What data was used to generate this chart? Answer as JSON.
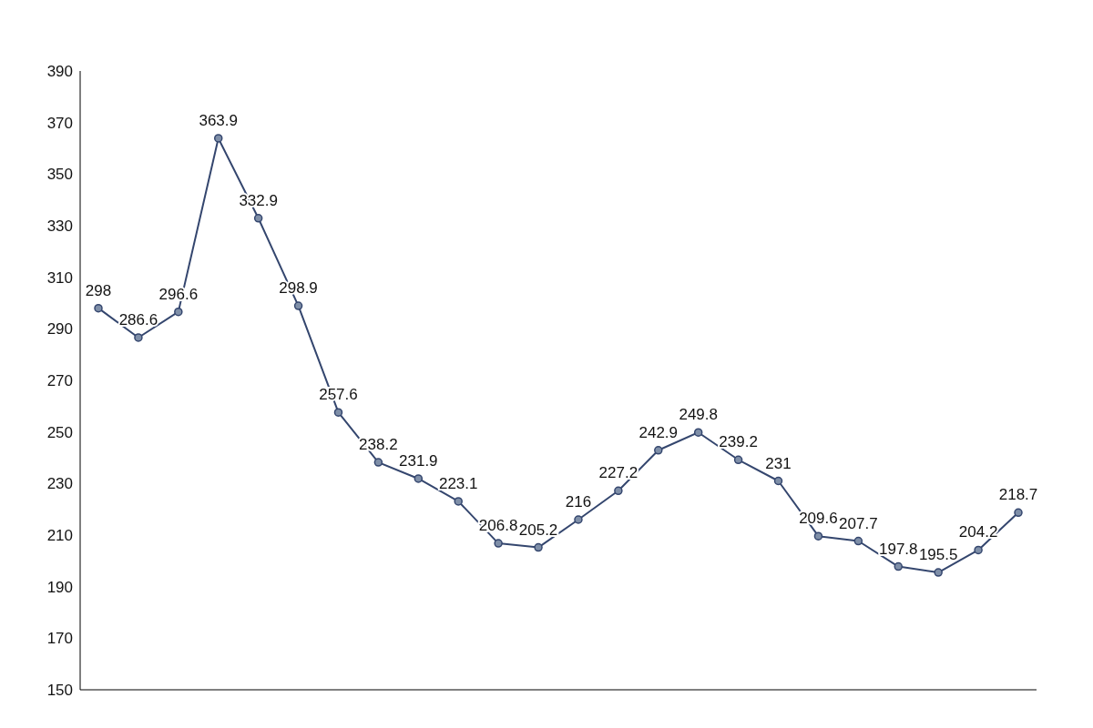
{
  "chart_data": {
    "type": "line",
    "categories": [
      null,
      null,
      null,
      null,
      null,
      null,
      null,
      null,
      null,
      null,
      null,
      null,
      null,
      null,
      null,
      null,
      null,
      null,
      null,
      null,
      null,
      null,
      null,
      null
    ],
    "series": [
      {
        "color": "#34466e",
        "values": [
          298,
          286.6,
          296.6,
          363.9,
          332.9,
          298.9,
          257.6,
          238.2,
          231.9,
          223.1,
          206.8,
          205.2,
          216.0,
          227.2,
          242.9,
          249.8,
          239.2,
          231.0,
          209.6,
          207.7,
          197.8,
          195.5,
          204.2,
          218.7
        ]
      }
    ],
    "ylim": [
      150,
      390
    ],
    "yticks": [
      150,
      170,
      190,
      210,
      230,
      250,
      270,
      290,
      310,
      330,
      350,
      370,
      390
    ],
    "grid": false,
    "legend": false,
    "marker": "circle",
    "line_style": "solid",
    "data_labels": true,
    "tick_labels": "y"
  }
}
